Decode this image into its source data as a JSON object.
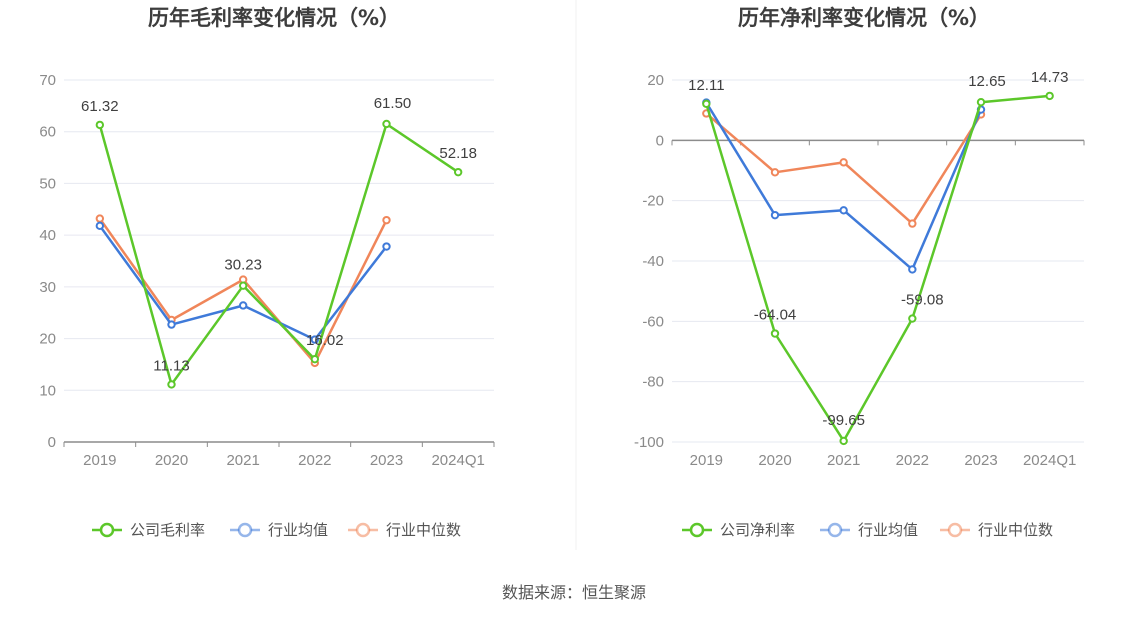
{
  "source_text": "数据来源：恒生聚源",
  "chart_data": [
    {
      "type": "line",
      "title": "历年毛利率变化情况（%）",
      "categories": [
        "2019",
        "2020",
        "2021",
        "2022",
        "2023",
        "2024Q1"
      ],
      "ylim": [
        0,
        70
      ],
      "yticks": [
        0,
        10,
        20,
        30,
        40,
        50,
        60,
        70
      ],
      "grid": true,
      "legend_position": "bottom-center",
      "series": [
        {
          "name": "公司毛利率",
          "color": "#5cc72a",
          "values": [
            61.32,
            11.13,
            30.23,
            16.02,
            61.5,
            52.18
          ],
          "labels": [
            "61.32",
            "11.13",
            "30.23",
            "16.02",
            "61.50",
            "52.18"
          ]
        },
        {
          "name": "行业均值",
          "color": "#3f7ad9",
          "values": [
            41.8,
            22.7,
            26.4,
            19.8,
            37.8,
            null
          ]
        },
        {
          "name": "行业中位数",
          "color": "#f0865a",
          "values": [
            43.2,
            23.6,
            31.4,
            15.3,
            42.9,
            null
          ]
        }
      ]
    },
    {
      "type": "line",
      "title": "历年净利率变化情况（%）",
      "categories": [
        "2019",
        "2020",
        "2021",
        "2022",
        "2023",
        "2024Q1"
      ],
      "ylim": [
        -100,
        20
      ],
      "yticks": [
        -100,
        -80,
        -60,
        -40,
        -20,
        0,
        20
      ],
      "grid": true,
      "legend_position": "bottom-center",
      "series": [
        {
          "name": "公司净利率",
          "color": "#5cc72a",
          "values": [
            12.11,
            -64.04,
            -99.65,
            -59.08,
            12.65,
            14.73
          ],
          "labels": [
            "12.11",
            "-64.04",
            "-99.65",
            "-59.08",
            "12.65",
            "14.73"
          ]
        },
        {
          "name": "行业均值",
          "color": "#3f7ad9",
          "values": [
            12.5,
            -24.8,
            -23.2,
            -42.8,
            10.2,
            null
          ]
        },
        {
          "name": "行业中位数",
          "color": "#f0865a",
          "values": [
            8.9,
            -10.6,
            -7.3,
            -27.6,
            8.6,
            null
          ]
        }
      ]
    }
  ]
}
